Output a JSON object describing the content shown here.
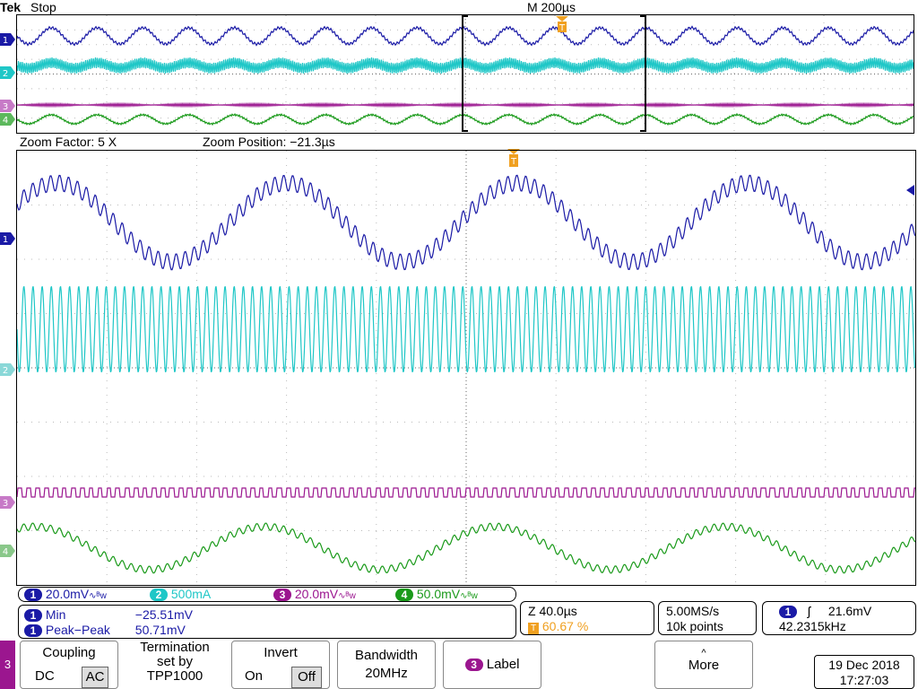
{
  "header": {
    "brand": "Tek",
    "status": "Stop",
    "timebase": "M 200µs"
  },
  "zoom": {
    "factor": "Zoom Factor: 5 X",
    "position": "Zoom Position: −21.3µs"
  },
  "channels": [
    {
      "num": "1",
      "scale": "20.0mV",
      "bw_icon": "∿ᴮw",
      "color": "#1a1aa6"
    },
    {
      "num": "2",
      "scale": "500mA",
      "bw_icon": "",
      "color": "#1fc7c7"
    },
    {
      "num": "3",
      "scale": "20.0mV",
      "bw_icon": "∿ᴮw",
      "color": "#9b168f"
    },
    {
      "num": "4",
      "scale": "50.0mV",
      "bw_icon": "∿ᴮw",
      "color": "#1a9a1a"
    }
  ],
  "measurements": [
    {
      "ch": "1",
      "name": "Min",
      "value": "−25.51mV"
    },
    {
      "ch": "1",
      "name": "Peak−Peak",
      "value": "50.71mV"
    }
  ],
  "trigger_pos": {
    "z": "Z 40.0µs",
    "percent": "60.67 %"
  },
  "acq": {
    "rate": "5.00MS/s",
    "points": "10k points"
  },
  "trigger": {
    "ch": "1",
    "level": "21.6mV",
    "freq": "42.2315kHz"
  },
  "menu": {
    "side_channel": "3",
    "coupling_label": "Coupling",
    "coupling_dc": "DC",
    "coupling_ac": "AC",
    "termination_l1": "Termination",
    "termination_l2": "set by",
    "termination_l3": "TPP1000",
    "invert_label": "Invert",
    "invert_on": "On",
    "invert_off": "Off",
    "bandwidth_label": "Bandwidth",
    "bandwidth_value": "20MHz",
    "label_ch": "3",
    "label_text": "Label",
    "more_arrow": "^",
    "more_text": "More"
  },
  "datetime": {
    "date": "19 Dec  2018",
    "time": "17:27:03"
  },
  "colors": {
    "ch1": "#1a1aa6",
    "ch2": "#1fc7c7",
    "ch3": "#9b168f",
    "ch4": "#1a9a1a",
    "trigger": "#f0a020"
  }
}
